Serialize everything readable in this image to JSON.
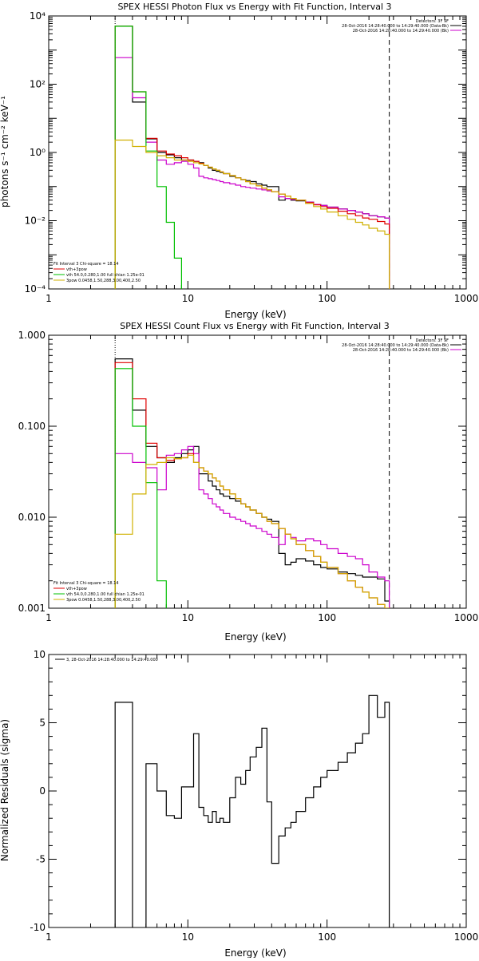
{
  "chart_data": [
    {
      "type": "line",
      "title": "SPEX HESSI Photon Flux vs Energy with Fit Function, Interval 3",
      "xlabel": "Energy (keV)",
      "ylabel": "photons s⁻¹ cm⁻² keV⁻¹",
      "xscale": "log",
      "yscale": "log",
      "xlim": [
        1,
        1000
      ],
      "ylim": [
        0.0001,
        10000
      ],
      "x_ticks": [
        1,
        10,
        100,
        1000
      ],
      "x_tick_labels": [
        "1",
        "10",
        "100",
        "1000"
      ],
      "y_ticks": [
        0.0001,
        0.01,
        1,
        100,
        10000
      ],
      "y_tick_labels": [
        "10⁻⁴",
        "10⁻²",
        "10⁰",
        "10²",
        "10⁴"
      ],
      "legend_top": [
        "Detectors: 3F 9F",
        "28-Oct-2016 14:28:40.000 to 14:29:40.000 (Data-Bk)",
        "28-Oct-2016 14:28:40.000 to 14:29:40.000 (Bk)"
      ],
      "legend_bottom": [
        "Fit Interval 3    Chi-square = 18.14",
        "vth+3pow",
        "vth 54.0,0.280,1.00  full chian 1.25e-01",
        "3pow 0.0458,1.50,288,3.00,400,2.50"
      ],
      "vlines": [
        3,
        280
      ],
      "edges": [
        3,
        4,
        5,
        6,
        7,
        8,
        9,
        10,
        11,
        12,
        13,
        14,
        15,
        16,
        17,
        18,
        20,
        22,
        24,
        26,
        28,
        31,
        34,
        37,
        40,
        45,
        50,
        55,
        60,
        70,
        80,
        90,
        100,
        120,
        140,
        160,
        180,
        200,
        230,
        260,
        280
      ],
      "series": [
        {
          "name": "28-Oct-2016 14:28:40.000 to 14:29:40.000 (Data-Bk)",
          "color": "#000000",
          "values": [
            5000,
            30,
            2.5,
            1.0,
            0.85,
            0.7,
            0.6,
            0.6,
            0.55,
            0.5,
            0.42,
            0.35,
            0.3,
            0.28,
            0.26,
            0.24,
            0.2,
            0.18,
            0.16,
            0.15,
            0.14,
            0.12,
            0.11,
            0.1,
            0.1,
            0.04,
            0.045,
            0.04,
            0.038,
            0.035,
            0.03,
            0.028,
            0.025,
            0.022,
            0.02,
            0.018,
            0.016,
            0.014,
            0.013,
            0.012
          ]
        },
        {
          "name": "28-Oct-2016 14:28:40.000 to 14:29:40.000 (Bk)",
          "color": "#cc00cc",
          "values": [
            600,
            40,
            2.0,
            0.6,
            0.45,
            0.5,
            0.55,
            0.45,
            0.35,
            0.2,
            0.18,
            0.17,
            0.16,
            0.15,
            0.14,
            0.13,
            0.12,
            0.11,
            0.1,
            0.095,
            0.09,
            0.085,
            0.08,
            0.075,
            0.07,
            0.05,
            0.045,
            0.042,
            0.04,
            0.035,
            0.03,
            0.028,
            0.025,
            0.022,
            0.02,
            0.018,
            0.016,
            0.014,
            0.013,
            0.012
          ]
        },
        {
          "name": "vth+3pow",
          "color": "#e00000",
          "values": [
            5000,
            60,
            2.6,
            1.1,
            0.9,
            0.8,
            0.7,
            0.6,
            0.55,
            0.48,
            0.42,
            0.37,
            0.33,
            0.3,
            0.27,
            0.24,
            0.21,
            0.18,
            0.16,
            0.14,
            0.12,
            0.105,
            0.09,
            0.08,
            0.07,
            0.06,
            0.052,
            0.045,
            0.04,
            0.034,
            0.029,
            0.026,
            0.023,
            0.019,
            0.016,
            0.014,
            0.012,
            0.011,
            0.0095,
            0.008
          ]
        },
        {
          "name": "vth 54.0,0.280,1.00  full chian 1.25e-01",
          "color": "#00c000",
          "values": [
            5000,
            60,
            1.1,
            0.1,
            0.009,
            0.0008,
            7e-05
          ]
        },
        {
          "name": "3pow 0.0458,1.50,288,3.00,400,2.50",
          "color": "#d0b000",
          "values": [
            2.3,
            1.5,
            1.0,
            0.8,
            0.7,
            0.6,
            0.6,
            0.55,
            0.5,
            0.46,
            0.42,
            0.37,
            0.33,
            0.3,
            0.27,
            0.24,
            0.21,
            0.18,
            0.16,
            0.14,
            0.12,
            0.105,
            0.09,
            0.08,
            0.07,
            0.06,
            0.052,
            0.045,
            0.04,
            0.032,
            0.026,
            0.022,
            0.018,
            0.014,
            0.011,
            0.009,
            0.0075,
            0.006,
            0.005,
            0.004
          ]
        }
      ]
    },
    {
      "type": "line",
      "title": "SPEX HESSI Count Flux vs Energy with Fit Function, Interval 3",
      "xlabel": "Energy (keV)",
      "ylabel": "",
      "xscale": "log",
      "yscale": "log",
      "xlim": [
        1,
        1000
      ],
      "ylim": [
        0.001,
        1.0
      ],
      "x_ticks": [
        1,
        10,
        100,
        1000
      ],
      "x_tick_labels": [
        "1",
        "10",
        "100",
        "1000"
      ],
      "y_ticks": [
        0.001,
        0.01,
        0.1,
        1.0
      ],
      "y_tick_labels": [
        "0.001",
        "0.010",
        "0.100",
        "1.000"
      ],
      "legend_top": [
        "Detectors: 3F 9F",
        "28-Oct-2016 14:28:40.000 to 14:29:40.000 (Data-Bk)",
        "28-Oct-2016 14:28:40.000 to 14:29:40.000 (Bk)"
      ],
      "legend_bottom": [
        "Fit Interval 3    Chi-square = 18.14",
        "vth+3pow",
        "vth 54.0,0.280,1.00  full chian 1.25e-01",
        "3pow 0.0458,1.50,288,3.00,400,2.50"
      ],
      "vlines": [
        3,
        280
      ],
      "edges": [
        3,
        4,
        5,
        6,
        7,
        8,
        9,
        10,
        11,
        12,
        13,
        14,
        15,
        16,
        17,
        18,
        20,
        22,
        24,
        26,
        28,
        31,
        34,
        37,
        40,
        45,
        50,
        55,
        60,
        70,
        80,
        90,
        100,
        120,
        140,
        160,
        180,
        200,
        230,
        260,
        280
      ],
      "series": [
        {
          "name": "28-Oct-2016 14:28:40.000 to 14:29:40.000 (Data-Bk)",
          "color": "#000000",
          "values": [
            0.55,
            0.15,
            0.06,
            0.045,
            0.04,
            0.045,
            0.05,
            0.055,
            0.06,
            0.03,
            0.03,
            0.025,
            0.022,
            0.02,
            0.018,
            0.017,
            0.016,
            0.015,
            0.014,
            0.013,
            0.012,
            0.011,
            0.01,
            0.0095,
            0.009,
            0.004,
            0.003,
            0.0032,
            0.0035,
            0.0033,
            0.003,
            0.0028,
            0.0027,
            0.0025,
            0.0024,
            0.0023,
            0.0022,
            0.0022,
            0.0021,
            0.0012
          ]
        },
        {
          "name": "28-Oct-2016 14:28:40.000 to 14:29:40.000 (Bk)",
          "color": "#cc00cc",
          "values": [
            0.05,
            0.04,
            0.035,
            0.02,
            0.048,
            0.05,
            0.055,
            0.06,
            0.05,
            0.02,
            0.018,
            0.016,
            0.014,
            0.013,
            0.012,
            0.011,
            0.01,
            0.0095,
            0.009,
            0.0085,
            0.008,
            0.0075,
            0.007,
            0.0065,
            0.006,
            0.005,
            0.0065,
            0.006,
            0.0055,
            0.0058,
            0.0055,
            0.005,
            0.0045,
            0.004,
            0.0037,
            0.0035,
            0.003,
            0.0025,
            0.0022,
            0.002
          ]
        },
        {
          "name": "vth+3pow",
          "color": "#e00000",
          "values": [
            0.5,
            0.2,
            0.065,
            0.045,
            0.042,
            0.044,
            0.045,
            0.05,
            0.04,
            0.035,
            0.032,
            0.03,
            0.027,
            0.025,
            0.022,
            0.02,
            0.018,
            0.016,
            0.014,
            0.013,
            0.012,
            0.011,
            0.01,
            0.009,
            0.0085,
            0.0075,
            0.0065,
            0.0058,
            0.005,
            0.0043,
            0.0037,
            0.0032,
            0.0028,
            0.0024,
            0.002,
            0.0017,
            0.0015,
            0.0013,
            0.0011,
            0.001
          ]
        },
        {
          "name": "vth 54.0,0.280,1.00  full chian 1.25e-01",
          "color": "#00c000",
          "values": [
            0.43,
            0.1,
            0.024,
            0.002,
            0.0008
          ]
        },
        {
          "name": "3pow 0.0458,1.50,288,3.00,400,2.50",
          "color": "#d0b000",
          "values": [
            0.0065,
            0.018,
            0.038,
            0.04,
            0.045,
            0.044,
            0.045,
            0.048,
            0.04,
            0.035,
            0.032,
            0.03,
            0.027,
            0.025,
            0.022,
            0.02,
            0.018,
            0.016,
            0.014,
            0.013,
            0.012,
            0.011,
            0.01,
            0.009,
            0.0085,
            0.0075,
            0.0065,
            0.0058,
            0.005,
            0.0043,
            0.0037,
            0.0032,
            0.0028,
            0.0024,
            0.002,
            0.0017,
            0.0015,
            0.0013,
            0.0011,
            0.001
          ]
        }
      ]
    },
    {
      "type": "line",
      "title": "",
      "xlabel": "Energy (keV)",
      "ylabel": "Normalized Residuals (sigma)",
      "xscale": "log",
      "yscale": "linear",
      "xlim": [
        1,
        1000
      ],
      "ylim": [
        -10,
        10
      ],
      "x_ticks": [
        1,
        10,
        100,
        1000
      ],
      "x_tick_labels": [
        "1",
        "10",
        "100",
        "1000"
      ],
      "y_ticks": [
        -10,
        -5,
        0,
        5,
        10
      ],
      "y_tick_labels": [
        "-10",
        "-5",
        "0",
        "5",
        "10"
      ],
      "legend_top": [
        "3, 28-Oct-2016 14:28:40.000 to 14:29:40.000"
      ],
      "legend_bottom": [],
      "vlines": [],
      "edges": [
        3,
        4,
        5,
        6,
        7,
        8,
        9,
        10,
        11,
        12,
        13,
        14,
        15,
        16,
        17,
        18,
        20,
        22,
        24,
        26,
        28,
        31,
        34,
        37,
        40,
        45,
        50,
        55,
        60,
        70,
        80,
        90,
        100,
        120,
        140,
        160,
        180,
        200,
        230,
        260,
        280
      ],
      "series": [
        {
          "name": "3, 28-Oct-2016 14:28:40.000 to 14:29:40.000",
          "color": "#000000",
          "values": [
            6.5,
            -10.2,
            2.0,
            0.0,
            -1.8,
            -2.0,
            0.3,
            0.3,
            4.2,
            -1.2,
            -1.8,
            -2.3,
            -1.5,
            -2.3,
            -2.0,
            -2.3,
            -0.5,
            1.0,
            0.5,
            1.5,
            2.5,
            3.2,
            4.6,
            -0.8,
            -5.3,
            -3.3,
            -2.7,
            -2.3,
            -1.5,
            -0.5,
            0.3,
            1.0,
            1.5,
            2.1,
            2.8,
            3.5,
            4.2,
            7.0,
            5.4,
            6.5
          ]
        }
      ]
    }
  ]
}
